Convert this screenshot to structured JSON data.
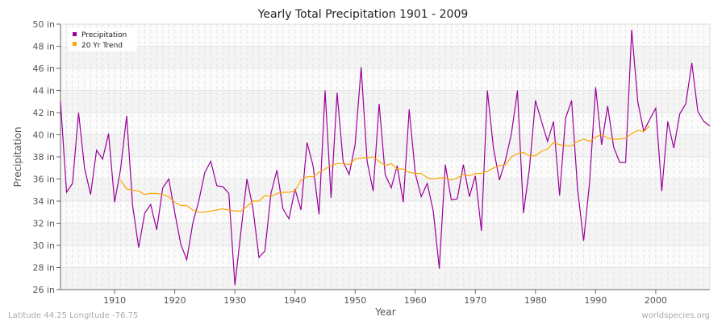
{
  "chart_data": {
    "type": "line",
    "title": "Yearly Total Precipitation 1901 - 2009",
    "xlabel": "Year",
    "ylabel": "Precipitation",
    "xlim": [
      1901,
      2009
    ],
    "ylim": [
      26,
      50
    ],
    "y_unit": "in",
    "x_ticks": [
      1910,
      1920,
      1930,
      1940,
      1950,
      1960,
      1970,
      1980,
      1990,
      2000
    ],
    "y_ticks": [
      26,
      28,
      30,
      32,
      34,
      36,
      38,
      40,
      42,
      44,
      46,
      48,
      50
    ],
    "y_tick_labels": [
      "26 in",
      "28 in",
      "30 in",
      "32 in",
      "34 in",
      "36 in",
      "38 in",
      "40 in",
      "42 in",
      "44 in",
      "46 in",
      "48 in",
      "50 in"
    ],
    "grid": true,
    "legend_placement": "top-left",
    "series": [
      {
        "name": "Precipitation",
        "color": "#990099",
        "x_start": 1901,
        "values": [
          43.0,
          34.8,
          35.6,
          42.0,
          37.0,
          34.6,
          38.6,
          37.8,
          40.1,
          33.9,
          36.9,
          41.7,
          33.6,
          29.8,
          32.9,
          33.7,
          31.4,
          35.2,
          36.0,
          33.0,
          30.1,
          28.7,
          32.0,
          34.0,
          36.6,
          37.6,
          35.4,
          35.3,
          34.7,
          26.4,
          31.2,
          36.0,
          33.4,
          28.9,
          29.5,
          34.7,
          36.8,
          33.3,
          32.4,
          35.1,
          33.2,
          39.3,
          37.2,
          32.8,
          44.0,
          34.3,
          43.8,
          37.6,
          36.4,
          39.1,
          46.1,
          37.6,
          34.9,
          42.8,
          36.4,
          35.2,
          37.2,
          33.9,
          42.3,
          36.5,
          34.4,
          35.6,
          33.1,
          27.9,
          37.3,
          34.1,
          34.2,
          37.3,
          34.4,
          36.3,
          31.3,
          44.0,
          38.8,
          35.9,
          37.7,
          40.1,
          44.0,
          32.9,
          37.0,
          43.1,
          41.2,
          39.4,
          41.2,
          34.5,
          41.5,
          43.1,
          35.1,
          30.4,
          35.7,
          44.3,
          39.1,
          42.6,
          38.9,
          37.5,
          37.5,
          49.5,
          43.0,
          40.3,
          41.4,
          42.4,
          34.9,
          41.2,
          38.8,
          41.9,
          42.8,
          46.5,
          42.1,
          41.2,
          40.8
        ]
      },
      {
        "name": "20 Yr Trend",
        "color": "#FFA500",
        "x_start": 1911,
        "values": [
          35.9,
          35.1,
          35.0,
          34.9,
          34.6,
          34.7,
          34.7,
          34.6,
          34.4,
          33.9,
          33.6,
          33.6,
          33.2,
          33.0,
          33.0,
          33.1,
          33.2,
          33.3,
          33.2,
          33.1,
          33.1,
          33.5,
          34.0,
          34.0,
          34.5,
          34.4,
          34.7,
          34.8,
          34.8,
          34.9,
          35.9,
          36.2,
          36.2,
          36.6,
          36.9,
          37.2,
          37.4,
          37.4,
          37.3,
          37.8,
          37.9,
          37.9,
          38.0,
          37.6,
          37.2,
          37.4,
          36.9,
          36.9,
          36.6,
          36.5,
          36.5,
          36.1,
          36.0,
          36.1,
          36.1,
          35.9,
          36.1,
          36.4,
          36.3,
          36.5,
          36.5,
          36.7,
          37.0,
          37.2,
          37.3,
          38.0,
          38.3,
          38.4,
          38.1,
          38.1,
          38.5,
          38.7,
          39.3,
          39.1,
          39.0,
          39.0,
          39.4,
          39.6,
          39.4,
          39.8,
          40.0,
          39.7,
          39.6,
          39.6,
          39.7,
          40.1,
          40.4,
          40.3,
          40.8
        ]
      }
    ]
  },
  "footer": {
    "location": "Latitude 44.25 Longitude -76.75",
    "source": "worldspecies.org"
  }
}
